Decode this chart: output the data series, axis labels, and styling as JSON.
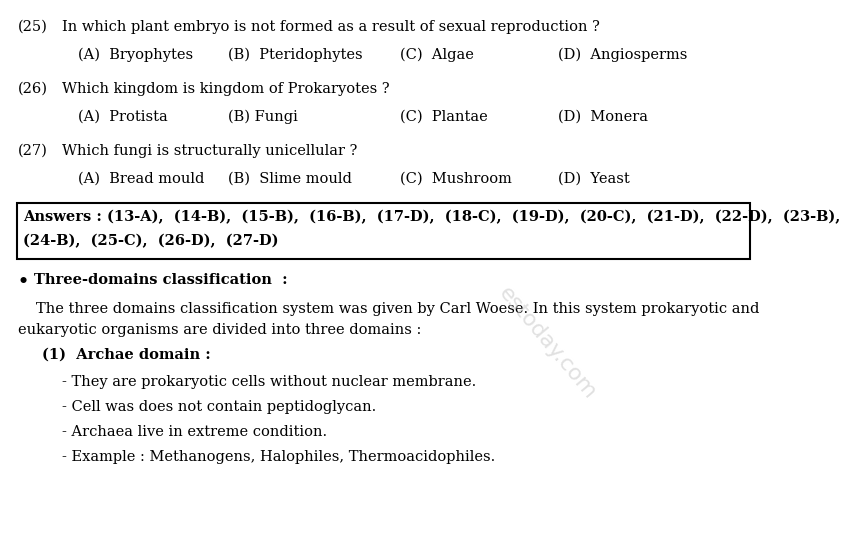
{
  "bg_color": "#ffffff",
  "q25_num": "(25)",
  "q25_text": "In which plant embryo is not formed as a result of sexual reproduction ?",
  "q25_opts": [
    "(A)  Bryophytes",
    "(B)  Pteridophytes",
    "(C)  Algae",
    "(D)  Angiosperms"
  ],
  "q26_num": "(26)",
  "q26_text": "Which kingdom is kingdom of Prokaryotes ?",
  "q26_opts": [
    "(A)  Protista",
    "(B) Fungi",
    "(C)  Plantae",
    "(D)  Monera"
  ],
  "q27_num": "(27)",
  "q27_text": "Which fungi is structurally unicellular ?",
  "q27_opts": [
    "(A)  Bread mould",
    "(B)  Slime mould",
    "(C)  Mushroom",
    "(D)  Yeast"
  ],
  "ans_line1": "Answers : (13-A),  (14-B),  (15-B),  (16-B),  (17-D),  (18-C),  (19-D),  (20-C),  (21-D),  (22-D),  (23-B),",
  "ans_line2": "(24-B),  (25-C),  (26-D),  (27-D)",
  "bullet_head": "Three-domains classification  :",
  "para_line1": "The three domains classification system was given by Carl Woese. In this system prokaryotic and",
  "para_line2": "eukaryotic organisms are divided into three domains :",
  "subhead": "(1)  Archae domain :",
  "bp1": "- They are prokaryotic cells without nuclear membrane.",
  "bp2": "- Cell was does not contain peptidoglycan.",
  "bp3": "- Archaea live in extreme condition.",
  "bp4": "- Example : Methanogens, Halophiles, Thermoacidophiles.",
  "fs": 10.5,
  "fs_bold": 10.5
}
